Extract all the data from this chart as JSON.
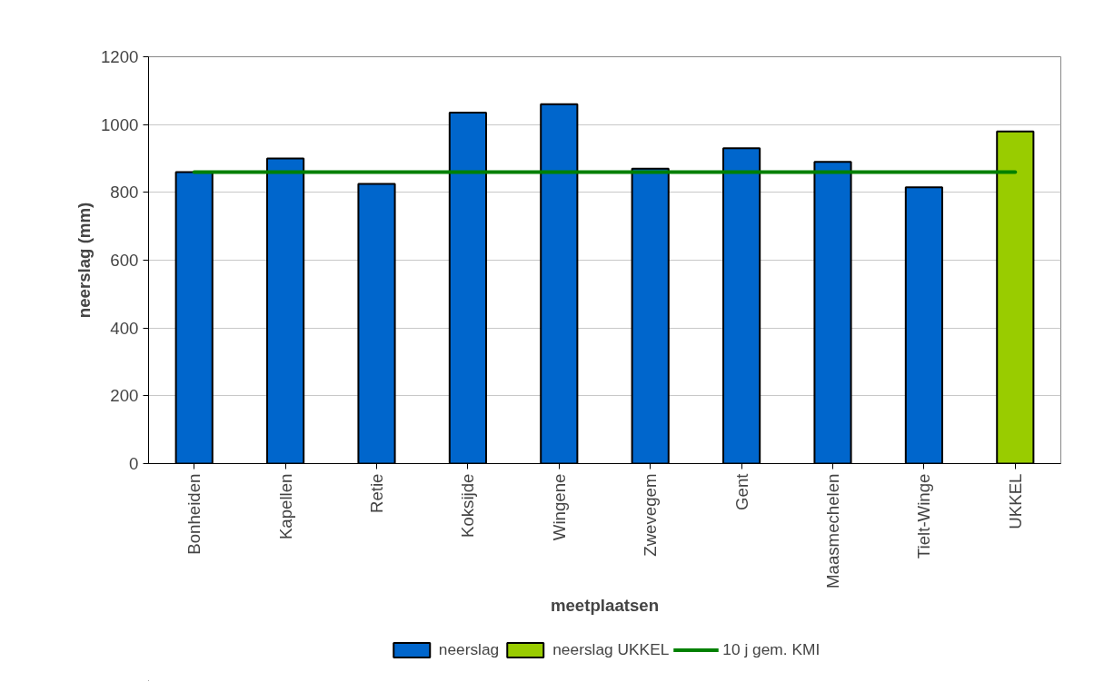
{
  "chart_data": {
    "type": "bar",
    "xlabel": "meetplaatsen",
    "ylabel": "neerslag (mm)",
    "categories": [
      "Bonheiden",
      "Kapellen",
      "Retie",
      "Koksijde",
      "Wingene",
      "Zwevegem",
      "Gent",
      "Maasmechelen",
      "Tielt-Winge",
      "UKKEL"
    ],
    "series": [
      {
        "name": "neerslag",
        "color": "#0066cc",
        "values": [
          860,
          900,
          825,
          1035,
          1060,
          870,
          930,
          890,
          815,
          null
        ]
      },
      {
        "name": "neerslag UKKEL",
        "color": "#99cc00",
        "values": [
          null,
          null,
          null,
          null,
          null,
          null,
          null,
          null,
          null,
          980
        ]
      },
      {
        "name": "10 j gem. KMI",
        "type": "line",
        "color": "#008000",
        "values": [
          860,
          860,
          860,
          860,
          860,
          860,
          860,
          860,
          860,
          860
        ]
      }
    ],
    "ylim": [
      0,
      1200
    ],
    "yticks": [
      0,
      200,
      400,
      600,
      800,
      1000,
      1200
    ],
    "grid": "y",
    "legend": "bottom"
  }
}
